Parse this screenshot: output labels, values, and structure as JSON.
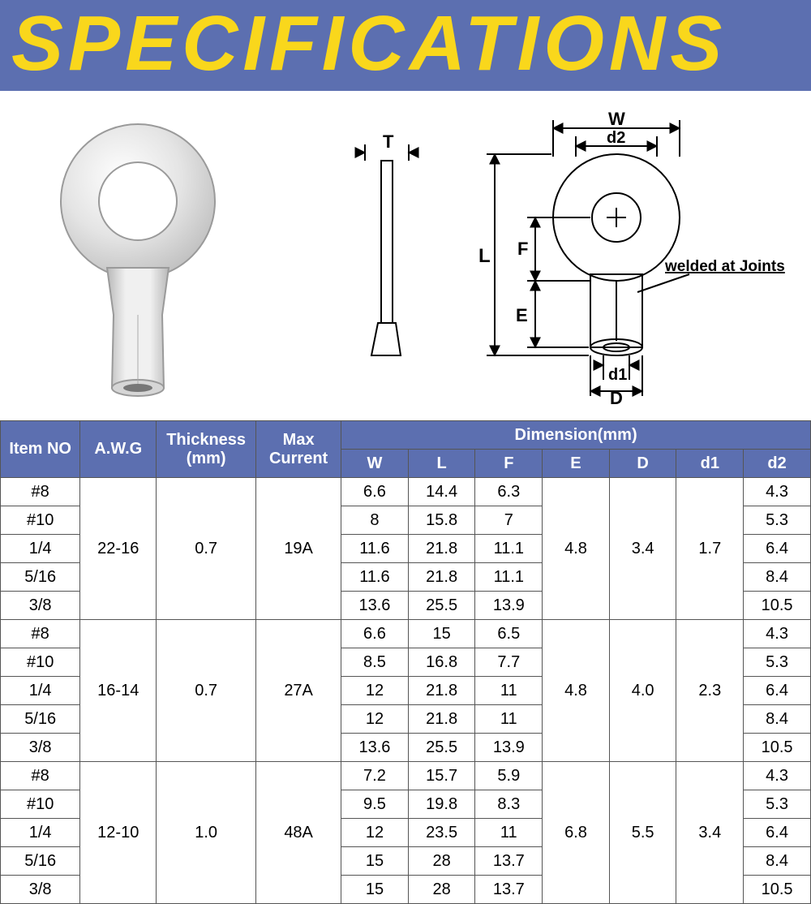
{
  "title": "SPECIFICATIONS",
  "diagram": {
    "labels": {
      "T": "T",
      "W": "W",
      "d2": "d2",
      "L": "L",
      "F": "F",
      "E": "E",
      "d1": "d1",
      "D": "D",
      "note": "welded at Joints"
    }
  },
  "table": {
    "headers": {
      "item": "Item NO",
      "awg": "A.W.G",
      "thickness": "Thickness (mm)",
      "max": "Max Current",
      "dimension": "Dimension(mm)",
      "W": "W",
      "L": "L",
      "F": "F",
      "E": "E",
      "D": "D",
      "d1": "d1",
      "d2": "d2"
    },
    "groups": [
      {
        "awg": "22-16",
        "thickness": "0.7",
        "max": "19A",
        "E": "4.8",
        "D": "3.4",
        "d1": "1.7",
        "rows": [
          {
            "item": "#8",
            "W": "6.6",
            "L": "14.4",
            "F": "6.3",
            "d2": "4.3"
          },
          {
            "item": "#10",
            "W": "8",
            "L": "15.8",
            "F": "7",
            "d2": "5.3"
          },
          {
            "item": "1/4",
            "W": "11.6",
            "L": "21.8",
            "F": "11.1",
            "d2": "6.4"
          },
          {
            "item": "5/16",
            "W": "11.6",
            "L": "21.8",
            "F": "11.1",
            "d2": "8.4"
          },
          {
            "item": "3/8",
            "W": "13.6",
            "L": "25.5",
            "F": "13.9",
            "d2": "10.5"
          }
        ]
      },
      {
        "awg": "16-14",
        "thickness": "0.7",
        "max": "27A",
        "E": "4.8",
        "D": "4.0",
        "d1": "2.3",
        "rows": [
          {
            "item": "#8",
            "W": "6.6",
            "L": "15",
            "F": "6.5",
            "d2": "4.3"
          },
          {
            "item": "#10",
            "W": "8.5",
            "L": "16.8",
            "F": "7.7",
            "d2": "5.3"
          },
          {
            "item": "1/4",
            "W": "12",
            "L": "21.8",
            "F": "11",
            "d2": "6.4"
          },
          {
            "item": "5/16",
            "W": "12",
            "L": "21.8",
            "F": "11",
            "d2": "8.4"
          },
          {
            "item": "3/8",
            "W": "13.6",
            "L": "25.5",
            "F": "13.9",
            "d2": "10.5"
          }
        ]
      },
      {
        "awg": "12-10",
        "thickness": "1.0",
        "max": "48A",
        "E": "6.8",
        "D": "5.5",
        "d1": "3.4",
        "rows": [
          {
            "item": "#8",
            "W": "7.2",
            "L": "15.7",
            "F": "5.9",
            "d2": "4.3"
          },
          {
            "item": "#10",
            "W": "9.5",
            "L": "19.8",
            "F": "8.3",
            "d2": "5.3"
          },
          {
            "item": "1/4",
            "W": "12",
            "L": "23.5",
            "F": "11",
            "d2": "6.4"
          },
          {
            "item": "5/16",
            "W": "15",
            "L": "28",
            "F": "13.7",
            "d2": "8.4"
          },
          {
            "item": "3/8",
            "W": "15",
            "L": "28",
            "F": "13.7",
            "d2": "10.5"
          }
        ]
      }
    ]
  }
}
